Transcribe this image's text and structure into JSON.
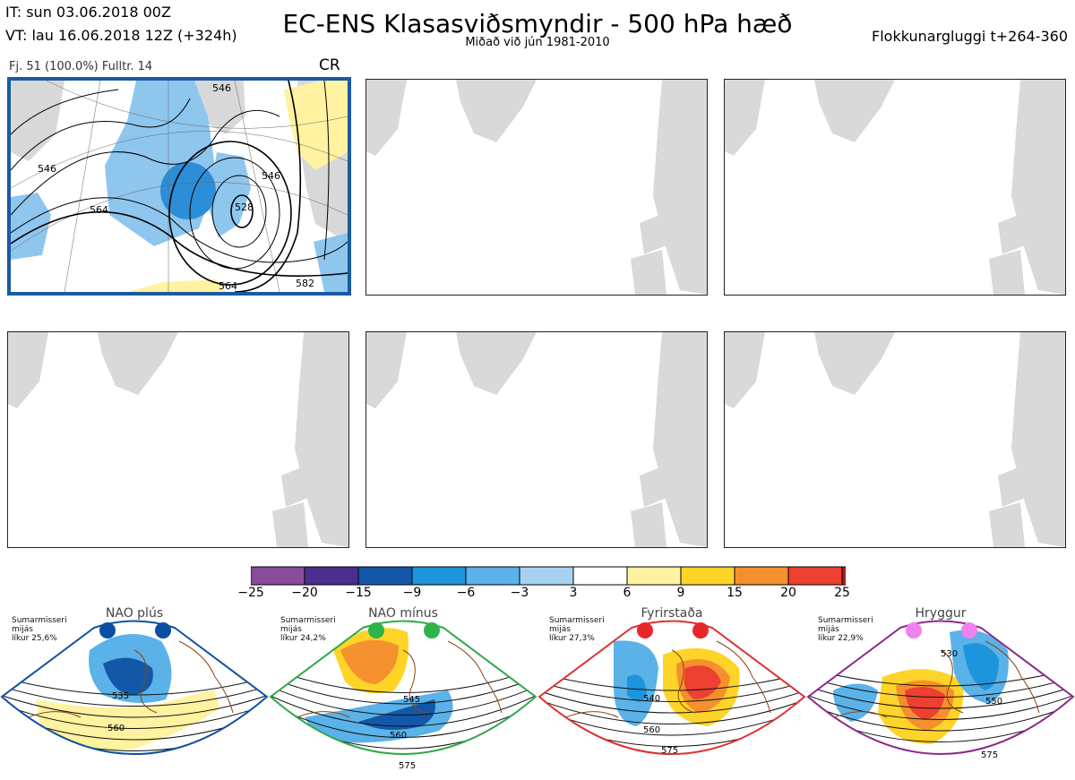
{
  "header": {
    "it_line": "IT: sun 03.06.2018 00Z",
    "vt_line": "VT: lau 16.06.2018 12Z  (+324h)",
    "title": "EC-ENS Klasasviðsmyndir - 500 hPa hæð",
    "subtitle": "Miðað við jún 1981-2010",
    "window": "Flokkunargluggi t+264-360",
    "member_count": "Fj. 51 (100.0%)   Fulltr. 14",
    "regime_code": "CR"
  },
  "panels": [
    {
      "id": "cluster-1",
      "active": true
    },
    {
      "id": "cluster-2",
      "active": false
    },
    {
      "id": "cluster-3",
      "active": false
    },
    {
      "id": "cluster-4",
      "active": false
    },
    {
      "id": "cluster-5",
      "active": false
    },
    {
      "id": "cluster-6",
      "active": false
    }
  ],
  "main_panel_contours": [
    "546",
    "546",
    "564",
    "546",
    "528",
    "564",
    "582"
  ],
  "chart_data": {
    "type": "heatmap",
    "colorbar": {
      "levels": [
        -25,
        -20,
        -15,
        -9,
        -6,
        -3,
        3,
        6,
        9,
        15,
        20,
        25
      ],
      "labels": [
        "−25",
        "−20",
        "−15",
        "−9",
        "−6",
        "−3",
        "3",
        "6",
        "9",
        "15",
        "20",
        "25"
      ],
      "colors": [
        "#8b4b9c",
        "#4a2f91",
        "#1358a8",
        "#1e94dc",
        "#5ab2e8",
        "#a6d2f1",
        "#ffffff",
        "#fff2a0",
        "#ffd428",
        "#f5902e",
        "#ec4030",
        "#b01c1c"
      ]
    },
    "regimes": [
      {
        "name": "NAO plús",
        "season_lines": [
          "Sumarmisseri",
          "mijás",
          "líkur 25,6%"
        ],
        "dot_color": "#0b4ea2",
        "frame_color": "#1050a0",
        "contour_labels": [
          "535",
          "560"
        ]
      },
      {
        "name": "NAO mínus",
        "season_lines": [
          "Sumarmisseri",
          "mijás",
          "líkur 24,2%"
        ],
        "dot_color": "#2db34a",
        "frame_color": "#2fa84a",
        "contour_labels": [
          "545",
          "560",
          "575"
        ]
      },
      {
        "name": "Fyrirstaða",
        "season_lines": [
          "Sumarmisseri",
          "mijás",
          "líkur 27,3%"
        ],
        "dot_color": "#e82828",
        "frame_color": "#e03030",
        "contour_labels": [
          "540",
          "560",
          "575"
        ]
      },
      {
        "name": "Hryggur",
        "season_lines": [
          "Sumarmisseri",
          "mijás",
          "líkur 22,9%"
        ],
        "dot_color": "#ee82ee",
        "frame_color": "#8a2a8a",
        "contour_labels": [
          "530",
          "550",
          "575"
        ]
      }
    ]
  }
}
